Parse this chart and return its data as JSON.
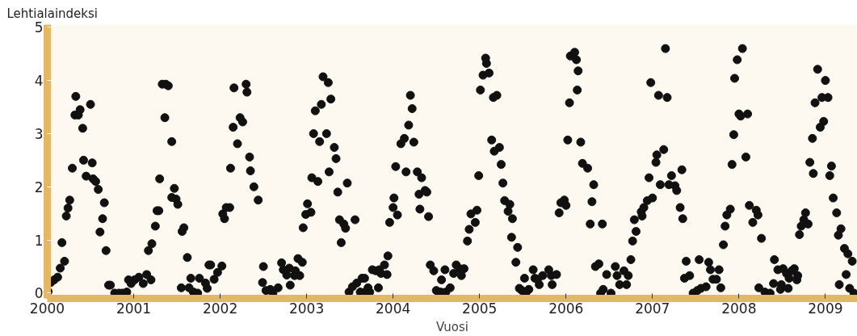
{
  "chart_data": {
    "type": "scatter",
    "xlabel": "Vuosi",
    "ylabel": "Lehtialaindeksi",
    "marker": "circle",
    "grid": false,
    "xlim": [
      2000,
      2009.37
    ],
    "ylim": [
      -0.1,
      5.05
    ],
    "xticks": [
      2000,
      2001,
      2002,
      2003,
      2004,
      2005,
      2006,
      2007,
      2008,
      2009
    ],
    "yticks": [
      0,
      1,
      2,
      3,
      4,
      5
    ],
    "series": [
      {
        "color": "#111111",
        "x": [
          2000.01,
          2000.04,
          2000.08,
          2000.12,
          2000.15,
          2000.17,
          2000.2,
          2000.22,
          2000.24,
          2000.26,
          2000.29,
          2000.32,
          2000.33,
          2000.36,
          2000.38,
          2000.41,
          2000.42,
          2000.45,
          2000.5,
          2000.52,
          2000.53,
          2000.56,
          2000.59,
          2000.61,
          2000.64,
          2000.66,
          2000.68,
          2000.71,
          2000.73,
          2000.78,
          2000.83,
          2000.87,
          2000.92,
          2000.94,
          2000.97,
          2001.01,
          2001.06,
          2001.11,
          2001.15,
          2001.2,
          2001.17,
          2001.21,
          2001.25,
          2001.27,
          2001.29,
          2001.3,
          2001.33,
          2001.37,
          2001.4,
          2001.36,
          2001.44,
          2001.47,
          2001.44,
          2001.49,
          2001.51,
          2001.58,
          2001.56,
          2001.62,
          2001.55,
          2001.66,
          2001.64,
          2001.69,
          2001.74,
          2001.76,
          2001.83,
          2001.85,
          2001.87,
          2001.89,
          2001.93,
          2001.97,
          2002.02,
          2002.03,
          2002.05,
          2002.07,
          2002.11,
          2002.12,
          2002.15,
          2002.16,
          2002.2,
          2002.23,
          2002.26,
          2002.3,
          2002.31,
          2002.34,
          2002.35,
          2002.39,
          2002.44,
          2002.5,
          2002.49,
          2002.53,
          2002.58,
          2002.61,
          2002.67,
          2002.71,
          2002.73,
          2002.77,
          2002.8,
          2002.81,
          2002.86,
          2002.87,
          2002.9,
          2002.92,
          2002.95,
          2002.96,
          2002.99,
          2003.01,
          2003.05,
          2003.1,
          2003.17,
          2003.19,
          2003.25,
          2003.28,
          2003.08,
          2003.15,
          2003.23,
          2003.06,
          2003.13,
          2003.32,
          2003.34,
          2003.26,
          2003.36,
          2003.47,
          2003.38,
          2003.43,
          2003.45,
          2003.56,
          2003.4,
          2003.49,
          2003.53,
          2003.58,
          2003.64,
          2003.67,
          2003.62,
          2003.68,
          2003.73,
          2003.71,
          2003.76,
          2003.8,
          2003.84,
          2003.83,
          2003.86,
          2003.9,
          2003.93,
          2003.94,
          2003.96,
          2004.0,
          2004.01,
          2004.05,
          2004.03,
          2004.09,
          2004.13,
          2004.18,
          2004.22,
          2004.2,
          2004.15,
          2004.24,
          2004.28,
          2004.33,
          2004.3,
          2004.37,
          2004.39,
          2004.31,
          2004.41,
          2004.43,
          2004.47,
          2004.56,
          2004.6,
          2004.5,
          2004.55,
          2004.61,
          2004.66,
          2004.7,
          2004.73,
          2004.77,
          2004.82,
          2004.79,
          2004.86,
          2004.88,
          2004.9,
          2004.95,
          2004.97,
          2004.99,
          2005.01,
          2005.04,
          2005.07,
          2005.08,
          2005.11,
          2005.16,
          2005.2,
          2005.14,
          2005.17,
          2005.23,
          2005.25,
          2005.27,
          2005.29,
          2005.33,
          2005.35,
          2005.38,
          2005.37,
          2005.44,
          2005.42,
          2005.52,
          2005.46,
          2005.49,
          2005.54,
          2005.57,
          2005.62,
          2005.64,
          2005.69,
          2005.67,
          2005.73,
          2005.8,
          2005.83,
          2005.84,
          2005.89,
          2005.92,
          2005.94,
          2005.98,
          2006.0,
          2006.02,
          2006.04,
          2006.05,
          2006.1,
          2006.12,
          2006.14,
          2006.13,
          2006.17,
          2006.19,
          2006.25,
          2006.32,
          2006.3,
          2006.28,
          2006.42,
          2006.34,
          2006.38,
          2006.47,
          2006.43,
          2006.4,
          2006.52,
          2006.57,
          2006.59,
          2006.67,
          2006.72,
          2006.62,
          2006.7,
          2006.75,
          2006.77,
          2006.81,
          2006.79,
          2006.88,
          2006.87,
          2006.9,
          2006.94,
          2007.0,
          2006.96,
          2007.04,
          2007.05,
          2007.13,
          2006.98,
          2007.07,
          2007.17,
          2007.15,
          2007.09,
          2007.19,
          2007.22,
          2007.26,
          2007.28,
          2007.34,
          2007.32,
          2007.35,
          2007.39,
          2007.37,
          2007.43,
          2007.47,
          2007.52,
          2007.56,
          2007.54,
          2007.62,
          2007.65,
          2007.67,
          2007.7,
          2007.77,
          2007.79,
          2007.74,
          2007.82,
          2007.84,
          2007.86,
          2007.9,
          2007.92,
          2007.94,
          2007.95,
          2007.98,
          2008.04,
          2008.0,
          2008.02,
          2008.1,
          2008.08,
          2008.12,
          2008.16,
          2008.2,
          2008.22,
          2008.26,
          2008.23,
          2008.3,
          2008.36,
          2008.4,
          2008.41,
          2008.45,
          2008.49,
          2008.48,
          2008.51,
          2008.55,
          2008.57,
          2008.58,
          2008.61,
          2008.64,
          2008.68,
          2008.67,
          2008.7,
          2008.72,
          2008.75,
          2008.77,
          2008.8,
          2008.82,
          2008.86,
          2008.85,
          2008.88,
          2008.91,
          2008.94,
          2008.98,
          2008.96,
          2009.03,
          2009.0,
          2009.05,
          2009.07,
          2009.09,
          2009.13,
          2009.15,
          2009.18,
          2009.22,
          2009.26,
          2009.31,
          2009.16,
          2009.24,
          2009.28,
          2009.33
        ],
        "values": [
          0.03,
          0.2,
          0.25,
          0.3,
          0.47,
          0.95,
          0.6,
          1.45,
          1.6,
          1.75,
          2.35,
          3.35,
          3.7,
          3.35,
          3.45,
          3.1,
          2.5,
          2.2,
          3.55,
          2.45,
          2.15,
          2.1,
          1.95,
          1.15,
          1.4,
          1.7,
          0.8,
          0.15,
          0.15,
          0,
          0,
          0,
          0.02,
          0.25,
          0.18,
          0.25,
          0.3,
          0.18,
          0.35,
          0.25,
          0.8,
          0.93,
          1.26,
          1.55,
          1.55,
          2.15,
          3.93,
          3.93,
          3.9,
          3.3,
          2.85,
          1.97,
          1.8,
          1.77,
          1.67,
          1.23,
          1.16,
          0.67,
          0.1,
          0.28,
          0.1,
          0.02,
          0,
          0.28,
          0.19,
          0.09,
          0.53,
          0.53,
          0.26,
          0.39,
          0.51,
          1.49,
          1.4,
          1.61,
          1.61,
          2.35,
          3.12,
          3.86,
          2.81,
          3.3,
          3.22,
          3.93,
          3.78,
          2.56,
          2.3,
          2.0,
          1.75,
          0.5,
          0.2,
          0.05,
          0.07,
          0,
          0.1,
          0.57,
          0.44,
          0.34,
          0.47,
          0.15,
          0.33,
          0.42,
          0.65,
          0.33,
          0.58,
          1.23,
          1.48,
          1.68,
          1.52,
          3.43,
          3.55,
          4.07,
          3.96,
          3.65,
          3.0,
          2.85,
          3.0,
          2.17,
          2.1,
          2.74,
          2.53,
          2.28,
          1.9,
          2.07,
          1.38,
          1.3,
          1.22,
          1.38,
          0.95,
          0.02,
          0.12,
          0.19,
          0.28,
          0.28,
          0.02,
          0.02,
          0.02,
          0.1,
          0.44,
          0.42,
          0.44,
          0.1,
          0.37,
          0.53,
          0.35,
          0.7,
          1.33,
          1.61,
          1.79,
          1.47,
          2.38,
          2.81,
          2.91,
          3.16,
          3.47,
          3.72,
          2.28,
          2.84,
          2.28,
          2.17,
          1.86,
          1.93,
          1.9,
          1.58,
          1.44,
          0.53,
          0.42,
          0.25,
          0.44,
          0.05,
          0.02,
          0.02,
          0.1,
          0.37,
          0.53,
          0.46,
          0.46,
          0.33,
          0.98,
          1.2,
          1.49,
          1.33,
          1.56,
          2.21,
          3.82,
          4.1,
          4.42,
          4.32,
          4.14,
          3.68,
          3.72,
          2.88,
          2.67,
          2.74,
          2.42,
          2.07,
          1.74,
          1.54,
          1.67,
          1.4,
          1.05,
          0.86,
          0.58,
          0.28,
          0.09,
          0.05,
          0.02,
          0.07,
          0.44,
          0.28,
          0.16,
          0.26,
          0.33,
          0.44,
          0.33,
          0.16,
          0.35,
          1.51,
          1.7,
          1.75,
          1.65,
          2.88,
          3.58,
          4.46,
          4.53,
          4.39,
          4.18,
          3.82,
          2.84,
          2.44,
          2.35,
          2.04,
          1.72,
          1.3,
          1.3,
          0.5,
          0.55,
          0.35,
          0.07,
          0,
          0,
          0.5,
          0.33,
          0.42,
          0.33,
          0.16,
          0.16,
          0.63,
          0.98,
          1.16,
          1.38,
          1.45,
          1.53,
          1.61,
          1.74,
          1.79,
          2.17,
          2.46,
          2.6,
          2.7,
          3.96,
          3.72,
          3.68,
          4.6,
          2.04,
          2.04,
          2.21,
          2.02,
          1.93,
          2.32,
          1.61,
          1.4,
          0.6,
          0.28,
          0.33,
          0,
          0.05,
          0.09,
          0.63,
          0.12,
          0.58,
          0.44,
          0.26,
          0.44,
          0.1,
          0.26,
          0.91,
          1.26,
          1.47,
          1.58,
          2.42,
          2.98,
          4.04,
          4.39,
          4.6,
          3.37,
          3.33,
          3.37,
          2.56,
          1.65,
          1.33,
          1.56,
          1.47,
          1.03,
          0.1,
          0.02,
          0,
          0.18,
          0.63,
          0.44,
          0.16,
          0.07,
          0.46,
          0.37,
          0.09,
          0.28,
          0.42,
          0.46,
          0.33,
          0.25,
          1.1,
          1.26,
          1.38,
          1.51,
          1.3,
          2.46,
          2.25,
          2.91,
          3.58,
          4.21,
          3.12,
          3.23,
          3.68,
          3.68,
          4.0,
          2.21,
          2.39,
          1.79,
          1.51,
          1.09,
          1.21,
          0.84,
          0.74,
          0.6,
          0.16,
          0.35,
          0.09,
          0
        ]
      }
    ]
  }
}
